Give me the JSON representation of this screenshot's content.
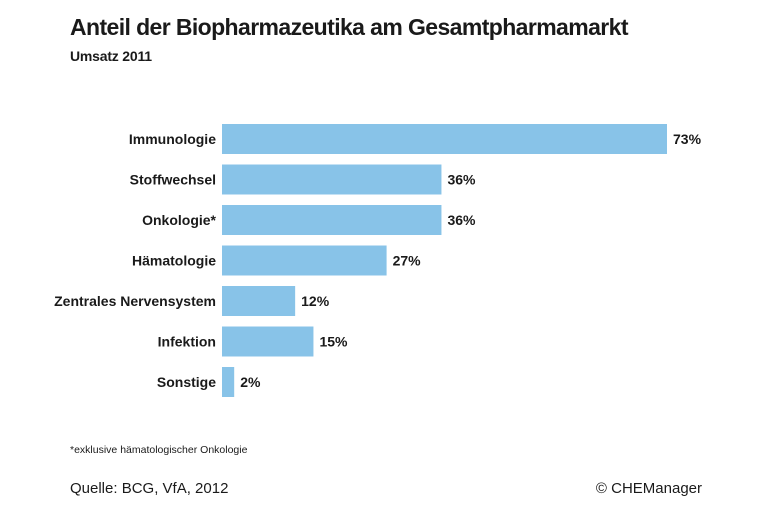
{
  "colors": {
    "bar": "#88c3e8",
    "text": "#1a1a1a",
    "background": "#ffffff"
  },
  "footnote": "*exklusive hämatologischer Onkologie",
  "source": "Quelle: BCG, VfA, 2012",
  "copyright": "© CHEManager",
  "chart_data": {
    "type": "bar",
    "orientation": "horizontal",
    "title": "Anteil der Biopharmazeutika am Gesamtpharmamarkt",
    "subtitle": "Umsatz 2011",
    "categories": [
      "Immunologie",
      "Stoffwechsel",
      "Onkologie*",
      "Hämatologie",
      "Zentrales Nervensystem",
      "Infektion",
      "Sonstige"
    ],
    "values": [
      73,
      36,
      36,
      27,
      12,
      15,
      2
    ],
    "value_labels": [
      "73%",
      "36%",
      "36%",
      "27%",
      "12%",
      "15%",
      "2%"
    ],
    "unit": "%",
    "xlim": [
      0,
      73
    ],
    "grid": false,
    "legend": "none"
  }
}
